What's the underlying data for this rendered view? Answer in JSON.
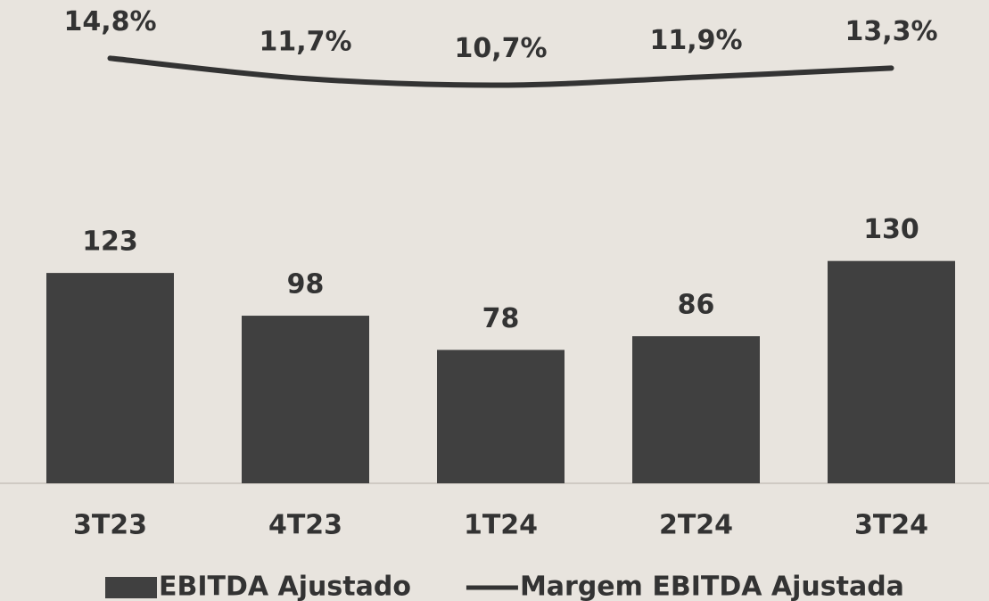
{
  "chart_data": {
    "type": "combo",
    "categories": [
      "3T23",
      "4T23",
      "1T24",
      "2T24",
      "3T24"
    ],
    "series": [
      {
        "name": "EBITDA Ajustado",
        "type": "bar",
        "color": "#404040",
        "values": [
          123,
          98,
          78,
          86,
          130
        ]
      },
      {
        "name": "Margem EBITDA Ajustada",
        "type": "line",
        "axis": "y2",
        "color": "#333333",
        "values": [
          14.8,
          11.7,
          10.7,
          11.9,
          13.3
        ],
        "value_labels": [
          "14,8%",
          "11,7%",
          "10,7%",
          "11,9%",
          "13,3%"
        ]
      }
    ],
    "ylim": [
      0,
      280
    ],
    "y2lim": [
      -50,
      23
    ],
    "legend": "bottom"
  }
}
